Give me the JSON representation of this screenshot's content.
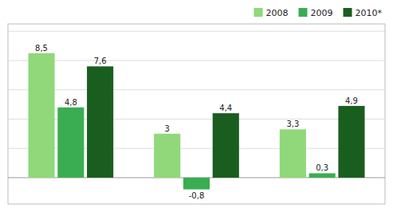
{
  "chart_data": {
    "type": "bar",
    "categories": [
      null,
      null,
      null
    ],
    "series": [
      {
        "name": "2008",
        "color": "#90d87a",
        "values": [
          8.5,
          3.0,
          3.3
        ],
        "value_labels": [
          "8,5",
          "3",
          "3,3"
        ]
      },
      {
        "name": "2009",
        "color": "#3aad52",
        "values": [
          4.8,
          -0.8,
          0.3
        ],
        "value_labels": [
          "4,8",
          "-0,8",
          "0,3"
        ]
      },
      {
        "name": "2010*",
        "color": "#1a5e1f",
        "values": [
          7.6,
          4.4,
          4.9
        ],
        "value_labels": [
          "7,6",
          "4,4",
          "4,9"
        ]
      }
    ],
    "ylim": [
      -1.8,
      10.5
    ],
    "yticks": [
      0,
      2,
      4,
      6,
      8,
      10
    ],
    "grid": true,
    "tick_labels": false,
    "data_labels": true,
    "legend": "top-right"
  }
}
